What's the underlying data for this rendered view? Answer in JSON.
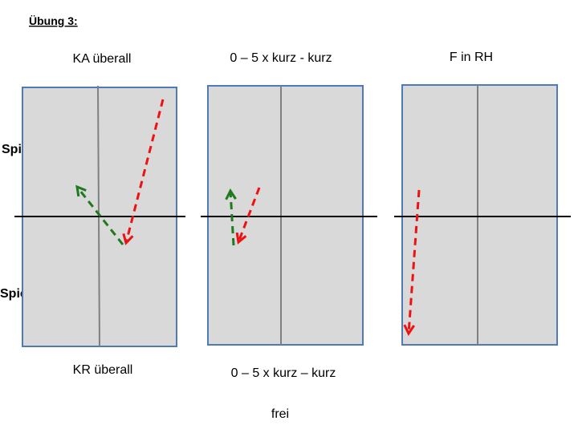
{
  "title": "Übung 3:",
  "players": [
    "Spieler A",
    "Spieler B"
  ],
  "tables": [
    {
      "top": "KA überall",
      "bottom": "KR überall"
    },
    {
      "top": "0 – 5 x kurz - kurz",
      "bottom": "0 – 5 x kurz – kurz"
    },
    {
      "top": "F in RH"
    }
  ],
  "footer": "frei"
}
